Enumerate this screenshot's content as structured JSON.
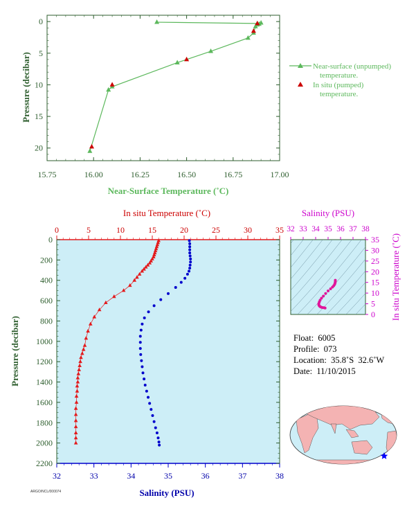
{
  "chart_data": [
    {
      "type": "line",
      "xlabel": "Near-Surface Temperature (˚C)",
      "ylabel": "Pressure (decibar)",
      "xlim": [
        15.75,
        17.0
      ],
      "ylim": [
        22,
        -1
      ],
      "xticks": [
        "15.75",
        "16.00",
        "16.25",
        "16.50",
        "16.75",
        "17.00"
      ],
      "yticks": [
        "0",
        "5",
        "10",
        "15",
        "20"
      ],
      "legend": "right",
      "colors": {
        "unpumped": "#5cb85c",
        "pumped": "#cc0000",
        "axis": "#2e5e2e"
      },
      "series": [
        {
          "name": "Near-surface (unpumped) temperature.",
          "x": [
            16.34,
            16.88,
            16.88,
            16.9,
            16.89,
            16.87,
            16.86,
            16.83,
            16.63,
            16.45,
            16.1,
            16.08,
            15.98
          ],
          "y": [
            0.1,
            0.3,
            0.5,
            0.2,
            0.4,
            0.8,
            1.8,
            2.6,
            4.7,
            6.5,
            10.3,
            10.8,
            20.5
          ]
        },
        {
          "name": "In situ (pumped) temperature.",
          "x": [
            16.88,
            16.86,
            16.5,
            16.1,
            15.99
          ],
          "y": [
            0.3,
            1.5,
            6.0,
            10.0,
            19.8
          ]
        }
      ]
    },
    {
      "type": "scatter",
      "xlabel": "Salinity (PSU)",
      "ylabel": "Pressure (decibar)",
      "x2label": "In situ Temperature (˚C)",
      "xlim": [
        32,
        38
      ],
      "x2lim": [
        0,
        35
      ],
      "ylim": [
        2200,
        0
      ],
      "xticks": [
        "32",
        "33",
        "34",
        "35",
        "36",
        "37",
        "38"
      ],
      "x2ticks": [
        "0",
        "5",
        "10",
        "15",
        "20",
        "25",
        "30",
        "35"
      ],
      "yticks": [
        "0",
        "200",
        "400",
        "600",
        "800",
        "1000",
        "1200",
        "1400",
        "1600",
        "1800",
        "2000",
        "2200"
      ],
      "colors": {
        "temperature": "#e31a1c",
        "salinity": "#0000cc",
        "background": "#cdeef7"
      },
      "series": [
        {
          "name": "",
          "x": [
            16.0,
            15.9,
            15.8,
            15.7,
            15.6,
            15.5,
            15.4,
            15.3,
            15.2,
            15.0,
            14.8,
            14.6,
            14.3,
            14.0,
            13.7,
            13.4,
            13.0,
            12.6,
            12.2,
            11.5,
            10.5,
            9.0,
            7.7,
            6.7,
            5.9,
            5.3,
            4.9,
            4.6,
            4.4,
            4.2,
            4.0,
            3.8,
            3.7,
            3.6,
            3.5,
            3.4,
            3.3,
            3.3,
            3.2,
            3.2,
            3.1,
            3.1,
            3.0,
            3.0,
            3.0,
            3.0,
            3.0,
            3.0,
            3.0
          ],
          "y": [
            10,
            30,
            50,
            70,
            90,
            110,
            130,
            150,
            170,
            190,
            210,
            230,
            250,
            270,
            290,
            310,
            340,
            370,
            400,
            450,
            500,
            560,
            620,
            690,
            760,
            830,
            900,
            970,
            1040,
            1080,
            1120,
            1160,
            1200,
            1240,
            1280,
            1320,
            1360,
            1400,
            1440,
            1490,
            1540,
            1600,
            1660,
            1720,
            1780,
            1840,
            1900,
            1950,
            2000
          ]
        },
        {
          "name": "",
          "x": [
            35.57,
            35.58,
            35.58,
            35.58,
            35.58,
            35.59,
            35.6,
            35.6,
            35.59,
            35.58,
            35.56,
            35.52,
            35.45,
            35.35,
            35.2,
            35.0,
            34.8,
            34.62,
            34.47,
            34.36,
            34.3,
            34.27,
            34.25,
            34.25,
            34.25,
            34.26,
            34.28,
            34.3,
            34.32,
            34.35,
            34.38,
            34.42,
            34.46,
            34.5,
            34.54,
            34.58,
            34.62,
            34.66,
            34.7,
            34.73,
            34.75,
            34.76
          ],
          "y": [
            10,
            40,
            70,
            100,
            130,
            160,
            190,
            220,
            250,
            280,
            310,
            340,
            380,
            420,
            470,
            530,
            590,
            650,
            710,
            770,
            830,
            890,
            950,
            1010,
            1070,
            1130,
            1190,
            1250,
            1310,
            1370,
            1430,
            1490,
            1550,
            1610,
            1670,
            1730,
            1790,
            1850,
            1900,
            1950,
            1990,
            2020
          ]
        }
      ]
    },
    {
      "type": "scatter",
      "xlabel": "Salinity (PSU)",
      "ylabel": "In situ Temperature (˚C)",
      "xlim": [
        32,
        38
      ],
      "ylim": [
        0,
        35
      ],
      "xticks": [
        "32",
        "33",
        "34",
        "35",
        "36",
        "37",
        "38"
      ],
      "yticks": [
        "0",
        "5",
        "10",
        "15",
        "20",
        "25",
        "30",
        "35"
      ],
      "colors": {
        "points": "#e0159a",
        "label": "#cc00cc"
      },
      "series": [
        {
          "name": "",
          "x": [
            35.58,
            35.58,
            35.57,
            35.55,
            35.52,
            35.45,
            35.35,
            35.2,
            35.0,
            34.8,
            34.62,
            34.47,
            34.36,
            34.3,
            34.26,
            34.25,
            34.27,
            34.3,
            34.35,
            34.42,
            34.5,
            34.6,
            34.7,
            34.76
          ],
          "y": [
            16.0,
            15.5,
            15.0,
            14.5,
            14.0,
            13.4,
            12.8,
            12.0,
            11.0,
            9.8,
            8.6,
            7.6,
            6.7,
            5.9,
            5.2,
            4.7,
            4.3,
            4.0,
            3.7,
            3.5,
            3.3,
            3.2,
            3.1,
            3.0
          ]
        }
      ]
    }
  ],
  "info": {
    "float": "Float:  6005",
    "profile": "Profile:  073",
    "location": "Location:  35.8˚S  32.6˚W",
    "date": "Date:  11/10/2015"
  },
  "footer": {
    "code": "ARGO/NCL/000074"
  },
  "map": {
    "land_color": "#f4b3b3",
    "ocean_color": "#cdeef7",
    "marker_color": "#0000ff"
  }
}
